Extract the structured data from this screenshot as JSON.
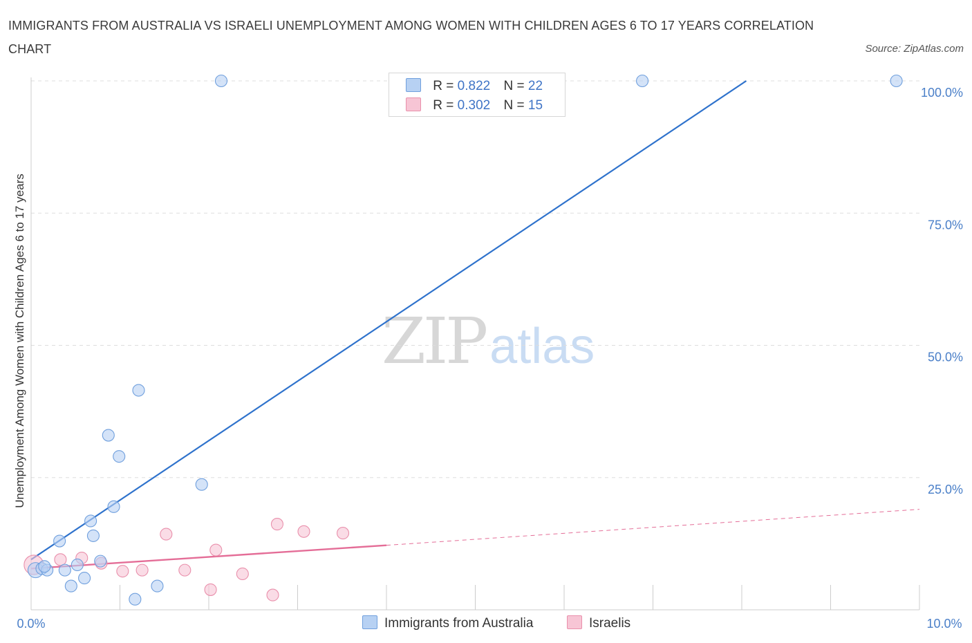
{
  "title": "IMMIGRANTS FROM AUSTRALIA VS ISRAELI UNEMPLOYMENT AMONG WOMEN WITH CHILDREN AGES 6 TO 17 YEARS CORRELATION CHART",
  "source": "Source: ZipAtlas.com",
  "watermark": {
    "zip": "ZIP",
    "atlas": "atlas"
  },
  "legend": {
    "rows": [
      {
        "r_label": "R =",
        "r_value": "0.822",
        "n_label": "N =",
        "n_value": "22"
      },
      {
        "r_label": "R =",
        "r_value": "0.302",
        "n_label": "N =",
        "n_value": "15"
      }
    ]
  },
  "colors": {
    "australia_fill": "#b7d1f3",
    "australia_stroke": "#6f9fdd",
    "australia_line": "#2e72cc",
    "israeli_fill": "#f7c5d5",
    "israeli_stroke": "#e98fab",
    "israeli_line": "#e46d97"
  },
  "chart_data": {
    "type": "scatter",
    "title": "IMMIGRANTS FROM AUSTRALIA VS ISRAELI UNEMPLOYMENT AMONG WOMEN WITH CHILDREN AGES 6 TO 17 YEARS CORRELATION CHART",
    "xlabel": "",
    "ylabel": "Unemployment Among Women with Children Ages 6 to 17 years",
    "xlim": [
      0,
      10
    ],
    "ylim": [
      0,
      100
    ],
    "x_tick_labels": [
      "0.0%",
      "10.0%"
    ],
    "y_tick_labels": [
      "25.0%",
      "50.0%",
      "75.0%",
      "100.0%"
    ],
    "y_ticks": [
      25,
      50,
      75,
      100
    ],
    "grid": true,
    "legend_position": "top-center",
    "series": [
      {
        "name": "Immigrants from Australia",
        "R": 0.822,
        "N": 22,
        "points": [
          {
            "x": 0.05,
            "y": 7.5
          },
          {
            "x": 0.12,
            "y": 7.8
          },
          {
            "x": 0.18,
            "y": 7.5
          },
          {
            "x": 0.32,
            "y": 13.0
          },
          {
            "x": 0.38,
            "y": 7.5
          },
          {
            "x": 0.45,
            "y": 4.5
          },
          {
            "x": 0.52,
            "y": 8.5
          },
          {
            "x": 0.6,
            "y": 6.0
          },
          {
            "x": 0.67,
            "y": 16.8
          },
          {
            "x": 0.7,
            "y": 14.0
          },
          {
            "x": 0.78,
            "y": 9.2
          },
          {
            "x": 0.87,
            "y": 33.0
          },
          {
            "x": 0.93,
            "y": 19.5
          },
          {
            "x": 0.99,
            "y": 29.0
          },
          {
            "x": 1.17,
            "y": 2.0
          },
          {
            "x": 1.21,
            "y": 41.5
          },
          {
            "x": 1.42,
            "y": 4.5
          },
          {
            "x": 1.92,
            "y": 23.7
          },
          {
            "x": 2.14,
            "y": 100.0
          },
          {
            "x": 6.88,
            "y": 100.0
          },
          {
            "x": 9.74,
            "y": 100.0
          },
          {
            "x": 0.15,
            "y": 8.2
          }
        ],
        "trend": {
          "x": [
            0.0,
            8.05
          ],
          "y": [
            9.5,
            100.0
          ]
        }
      },
      {
        "name": "Israelis",
        "R": 0.302,
        "N": 15,
        "points": [
          {
            "x": 0.03,
            "y": 8.5
          },
          {
            "x": 0.33,
            "y": 9.5
          },
          {
            "x": 0.57,
            "y": 9.8
          },
          {
            "x": 0.79,
            "y": 8.8
          },
          {
            "x": 1.03,
            "y": 7.3
          },
          {
            "x": 1.25,
            "y": 7.5
          },
          {
            "x": 1.52,
            "y": 14.3
          },
          {
            "x": 1.73,
            "y": 7.5
          },
          {
            "x": 2.02,
            "y": 3.8
          },
          {
            "x": 2.08,
            "y": 11.3
          },
          {
            "x": 2.38,
            "y": 6.8
          },
          {
            "x": 2.72,
            "y": 2.8
          },
          {
            "x": 2.77,
            "y": 16.2
          },
          {
            "x": 3.07,
            "y": 14.8
          },
          {
            "x": 3.51,
            "y": 14.5
          }
        ],
        "trend": {
          "x": [
            0.0,
            4.0
          ],
          "y": [
            7.8,
            12.2
          ]
        },
        "trend_extension": {
          "x": [
            4.0,
            10.0
          ],
          "y": [
            12.2,
            19.0
          ]
        }
      }
    ]
  },
  "bottom_legend": {
    "items": [
      "Immigrants from Australia",
      "Israelis"
    ]
  }
}
